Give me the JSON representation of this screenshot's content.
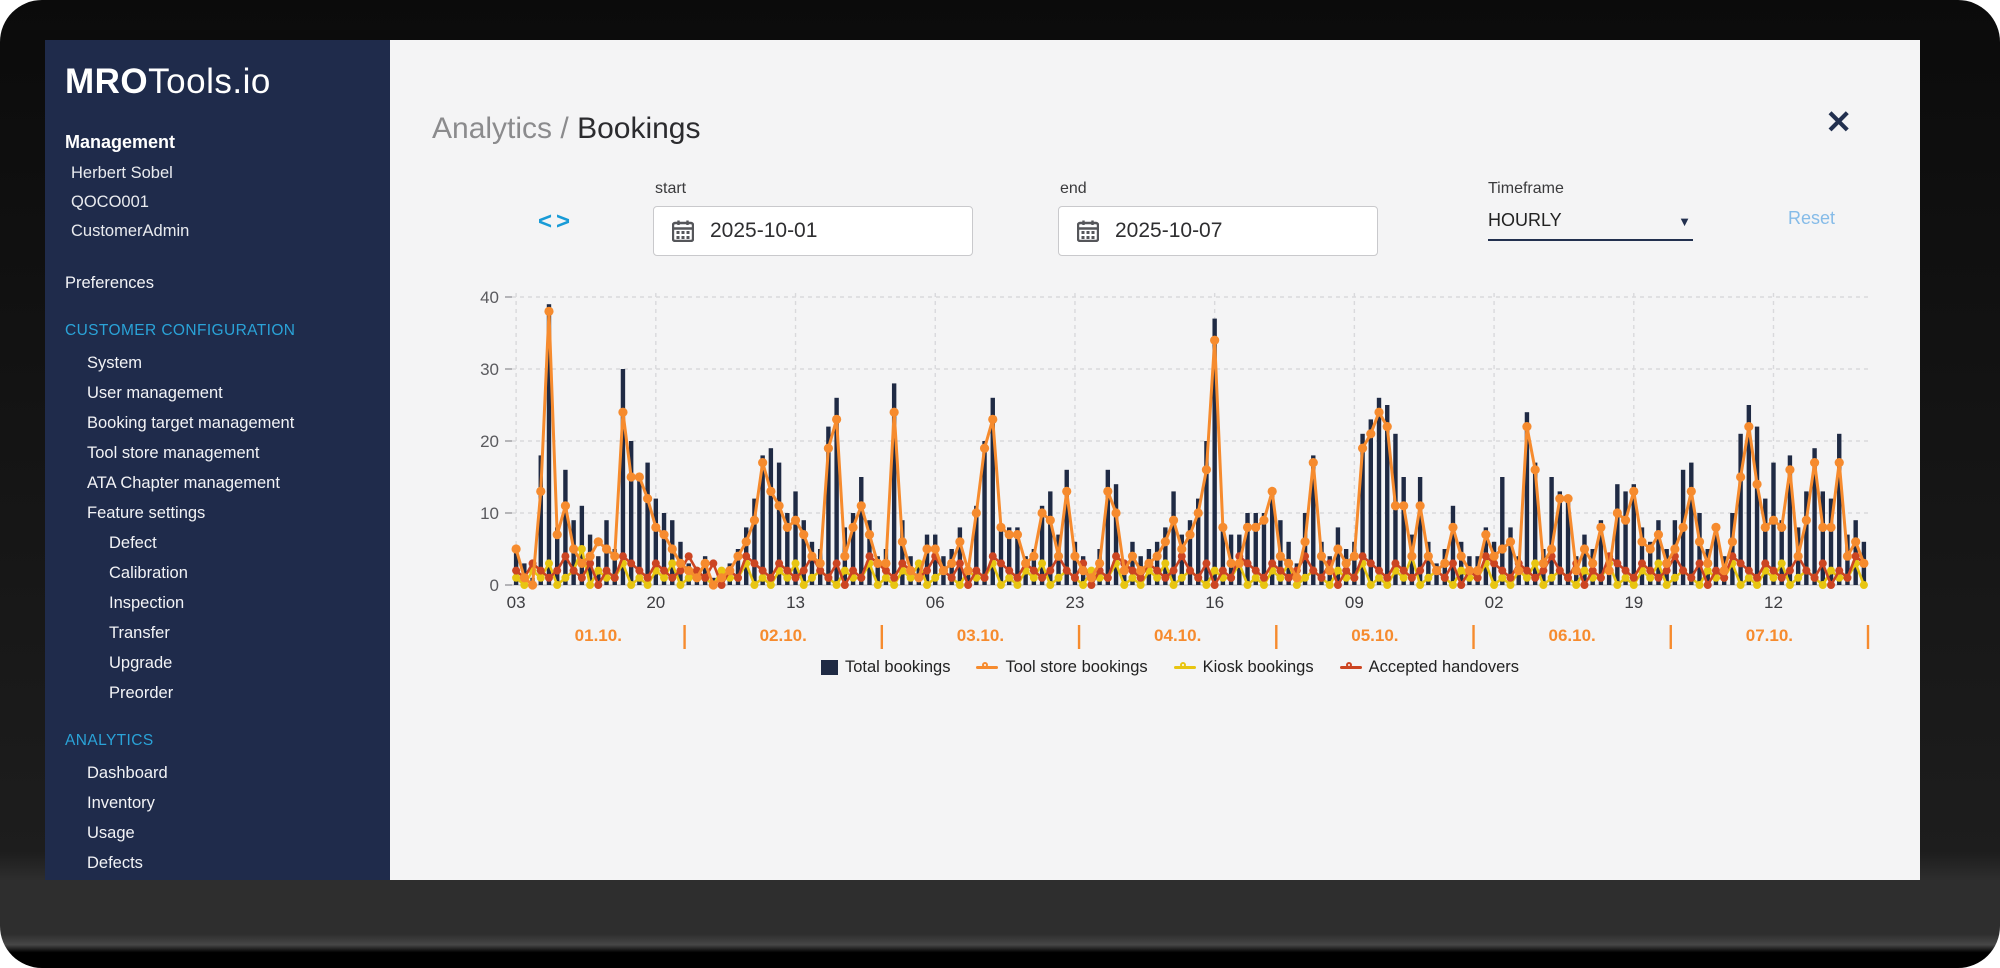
{
  "window": {
    "close_icon": "✕"
  },
  "sidebar": {
    "logo_bold": "MRO",
    "logo_light": "Tools.io",
    "management_title": "Management",
    "management_items": [
      "Herbert Sobel",
      "QOCO001",
      "CustomerAdmin"
    ],
    "preferences_label": "Preferences",
    "customer_configuration_title": "CUSTOMER CONFIGURATION",
    "cc_items": [
      "System",
      "User management",
      "Booking target management",
      "Tool store management",
      "ATA Chapter management",
      "Feature settings"
    ],
    "feature_settings_children": [
      "Defect",
      "Calibration",
      "Inspection",
      "Transfer",
      "Upgrade",
      "Preorder"
    ],
    "analytics_title": "ANALYTICS",
    "analytics_items": [
      "Dashboard",
      "Inventory",
      "Usage",
      "Defects"
    ]
  },
  "header": {
    "breadcrumb_parent": "Analytics /",
    "breadcrumb_current": "Bookings"
  },
  "controls": {
    "prev_icon": "<",
    "next_icon": ">",
    "start_label": "start",
    "start_value": "2025-10-01",
    "end_label": "end",
    "end_value": "2025-10-07",
    "timeframe_label": "Timeframe",
    "timeframe_value": "HOURLY",
    "caret_icon": "▼",
    "reset_label": "Reset"
  },
  "chart_data": {
    "type": "mixed-bar-line",
    "ylim": [
      0,
      40
    ],
    "yticks": [
      0,
      10,
      20,
      30,
      40
    ],
    "grid": "dashed",
    "hour_tick_interval": 17,
    "hour_tick_labels": [
      "03",
      "20",
      "13",
      "06",
      "23",
      "16",
      "09",
      "02",
      "19",
      "12"
    ],
    "day_labels": [
      "01.10.",
      "02.10.",
      "03.10.",
      "04.10.",
      "05.10.",
      "06.10.",
      "07.10."
    ],
    "day_point_counts": [
      21,
      24,
      24,
      24,
      24,
      24,
      24
    ],
    "legend_position": "bottom",
    "series": [
      {
        "name": "Total bookings",
        "type": "bar",
        "color": "#1f2a44",
        "values": [
          5,
          3,
          1,
          18,
          39,
          8,
          16,
          9,
          11,
          7,
          4,
          9,
          5,
          30,
          20,
          15,
          17,
          12,
          10,
          9,
          6,
          3,
          2,
          4,
          1,
          2,
          3,
          5,
          8,
          12,
          18,
          19,
          17,
          10,
          13,
          9,
          6,
          5,
          22,
          26,
          8,
          10,
          15,
          9,
          4,
          5,
          28,
          9,
          4,
          3,
          7,
          7,
          4,
          5,
          8,
          3,
          11,
          20,
          26,
          8,
          8,
          8,
          4,
          5,
          11,
          13,
          7,
          16,
          6,
          4,
          2,
          5,
          16,
          14,
          3,
          6,
          4,
          5,
          6,
          8,
          13,
          7,
          9,
          12,
          20,
          37,
          8,
          7,
          7,
          10,
          10,
          10,
          13,
          9,
          6,
          3,
          10,
          18,
          6,
          4,
          8,
          5,
          6,
          21,
          23,
          26,
          25,
          21,
          15,
          7,
          15,
          6,
          3,
          5,
          11,
          6,
          4,
          4,
          8,
          6,
          15,
          8,
          4,
          24,
          17,
          5,
          15,
          13,
          12,
          4,
          7,
          5,
          9,
          4,
          14,
          13,
          14,
          8,
          6,
          9,
          5,
          9,
          16,
          17,
          10,
          5,
          8,
          4,
          10,
          21,
          25,
          22,
          12,
          17,
          9,
          18,
          8,
          13,
          19,
          13,
          12,
          21,
          7,
          9,
          6
        ]
      },
      {
        "name": "Tool store bookings",
        "type": "line",
        "color": "#f68b2e",
        "values": [
          5,
          1,
          0,
          13,
          38,
          7,
          11,
          5,
          3,
          4,
          6,
          5,
          4,
          24,
          15,
          15,
          12,
          8,
          7,
          5,
          3,
          2,
          1,
          3,
          0,
          1,
          2,
          4,
          6,
          9,
          17,
          13,
          11,
          8,
          9,
          7,
          4,
          3,
          19,
          23,
          4,
          8,
          11,
          7,
          3,
          3,
          24,
          6,
          2,
          1,
          5,
          5,
          2,
          3,
          6,
          2,
          10,
          19,
          23,
          8,
          7,
          7,
          3,
          4,
          10,
          9,
          4,
          13,
          4,
          2,
          1,
          3,
          13,
          10,
          2,
          4,
          2,
          3,
          4,
          6,
          9,
          5,
          7,
          10,
          16,
          34,
          8,
          3,
          3,
          8,
          8,
          9,
          13,
          4,
          3,
          1,
          6,
          17,
          4,
          2,
          5,
          3,
          4,
          19,
          21,
          24,
          22,
          11,
          11,
          4,
          11,
          4,
          2,
          3,
          8,
          4,
          2,
          2,
          7,
          4,
          5,
          6,
          2,
          22,
          16,
          3,
          5,
          12,
          12,
          2,
          5,
          3,
          8,
          2,
          10,
          9,
          13,
          6,
          5,
          7,
          3,
          5,
          8,
          13,
          6,
          3,
          8,
          2,
          6,
          15,
          22,
          14,
          8,
          9,
          8,
          16,
          4,
          9,
          17,
          8,
          8,
          17,
          4,
          6,
          3
        ]
      },
      {
        "name": "Kiosk bookings",
        "type": "line",
        "color": "#e8c511",
        "values": [
          1,
          0,
          2,
          1,
          3,
          0,
          1,
          2,
          5,
          0,
          2,
          1,
          1,
          3,
          0,
          1,
          0,
          2,
          1,
          3,
          0,
          1,
          2,
          1,
          0,
          2,
          1,
          1,
          3,
          0,
          1,
          0,
          2,
          1,
          3,
          0,
          1,
          2,
          1,
          0,
          2,
          1,
          1,
          3,
          0,
          1,
          0,
          2,
          1,
          3,
          0,
          1,
          2,
          1,
          0,
          2,
          1,
          1,
          3,
          0,
          1,
          0,
          2,
          1,
          3,
          0,
          1,
          2,
          1,
          0,
          2,
          1,
          1,
          3,
          0,
          1,
          0,
          2,
          1,
          3,
          0,
          1,
          2,
          1,
          0,
          2,
          1,
          1,
          3,
          0,
          1,
          0,
          2,
          1,
          3,
          0,
          1,
          2,
          1,
          0,
          2,
          1,
          1,
          3,
          0,
          1,
          0,
          2,
          1,
          4,
          0,
          1,
          2,
          1,
          0,
          2,
          1,
          1,
          3,
          0,
          1,
          0,
          2,
          1,
          3,
          0,
          1,
          2,
          1,
          0,
          2,
          1,
          1,
          3,
          0,
          1,
          0,
          2,
          1,
          3,
          0,
          1,
          2,
          1,
          0,
          2,
          1,
          1,
          3,
          0,
          1,
          0,
          2,
          1,
          3,
          0,
          1,
          2,
          1,
          0,
          2,
          1,
          1,
          3,
          0
        ]
      },
      {
        "name": "Accepted handovers",
        "type": "line",
        "color": "#cc4522",
        "values": [
          2,
          1,
          3,
          2,
          1,
          2,
          4,
          2,
          1,
          3,
          0,
          2,
          1,
          4,
          3,
          2,
          1,
          3,
          2,
          1,
          2,
          4,
          2,
          1,
          3,
          0,
          2,
          1,
          4,
          3,
          2,
          1,
          3,
          2,
          1,
          2,
          4,
          2,
          1,
          3,
          0,
          2,
          1,
          4,
          3,
          2,
          1,
          3,
          2,
          1,
          2,
          4,
          2,
          1,
          3,
          0,
          2,
          1,
          4,
          3,
          2,
          1,
          3,
          2,
          1,
          2,
          4,
          2,
          1,
          3,
          0,
          2,
          1,
          4,
          3,
          2,
          1,
          3,
          2,
          1,
          2,
          4,
          2,
          1,
          3,
          0,
          2,
          1,
          4,
          3,
          2,
          1,
          3,
          2,
          1,
          2,
          4,
          2,
          1,
          3,
          0,
          2,
          1,
          4,
          3,
          2,
          1,
          3,
          2,
          1,
          2,
          4,
          2,
          1,
          3,
          0,
          2,
          1,
          4,
          3,
          2,
          1,
          3,
          2,
          1,
          2,
          4,
          2,
          1,
          3,
          0,
          2,
          1,
          4,
          3,
          2,
          1,
          3,
          2,
          1,
          2,
          4,
          2,
          1,
          3,
          0,
          2,
          1,
          4,
          3,
          2,
          1,
          3,
          2,
          1,
          2,
          4,
          2,
          1,
          3,
          0,
          2,
          1,
          4,
          3
        ]
      }
    ]
  }
}
